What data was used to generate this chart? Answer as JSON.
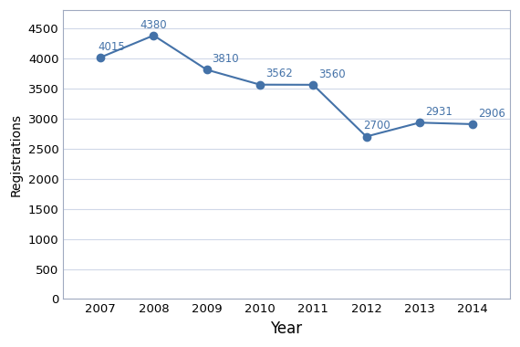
{
  "years": [
    2007,
    2008,
    2009,
    2010,
    2011,
    2012,
    2013,
    2014
  ],
  "values": [
    4015,
    4380,
    3810,
    3562,
    3560,
    2700,
    2931,
    2906
  ],
  "line_color": "#4472a8",
  "marker_color": "#4472a8",
  "xlabel": "Year",
  "ylabel": "Registrations",
  "ylim": [
    0,
    4800
  ],
  "yticks": [
    0,
    500,
    1000,
    1500,
    2000,
    2500,
    3000,
    3500,
    4000,
    4500
  ],
  "background_color": "#ffffff",
  "plot_bg_color": "#ffffff",
  "grid_color": "#d0d8e8",
  "annotation_color": "#4472a8",
  "annotation_fontsize": 8.5,
  "xlabel_fontsize": 12,
  "ylabel_fontsize": 10,
  "tick_fontsize": 9.5,
  "border_color": "#a0aac0",
  "label_ha": {
    "2007": "left",
    "2008": "center",
    "2009": "left",
    "2010": "left",
    "2011": "left",
    "2012": "left",
    "2013": "left",
    "2014": "left"
  },
  "label_dx": {
    "2007": -0.05,
    "2008": 0.0,
    "2009": 0.1,
    "2010": 0.1,
    "2011": 0.1,
    "2012": -0.05,
    "2013": 0.1,
    "2014": 0.1
  },
  "label_dy": {
    "2007": 80,
    "2008": 80,
    "2009": 80,
    "2010": 80,
    "2011": 80,
    "2012": 80,
    "2013": 80,
    "2014": 80
  }
}
